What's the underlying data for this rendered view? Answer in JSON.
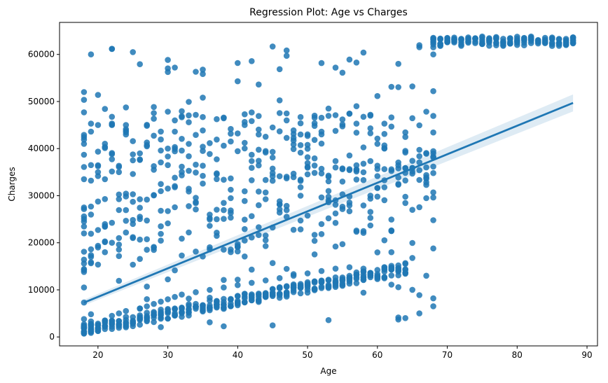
{
  "chart_data": {
    "type": "scatter",
    "title": "Regression Plot: Age vs Charges",
    "xlabel": "Age",
    "ylabel": "Charges",
    "xlim": [
      14.5,
      91.5
    ],
    "ylim": [
      -1900,
      66800
    ],
    "x_ticks": [
      20,
      30,
      40,
      50,
      60,
      70,
      80,
      90
    ],
    "y_ticks": [
      0,
      10000,
      20000,
      30000,
      40000,
      50000,
      60000
    ],
    "grid": false,
    "legend": "none",
    "point_color": "#1f77b4",
    "regression": {
      "x": [
        18,
        88
      ],
      "y": [
        7300,
        49700
      ],
      "ci_half_width_start": 600,
      "ci_half_width_end": 1800
    },
    "bands": {
      "low_band": {
        "age_range": [
          18,
          64
        ],
        "y_at_start": 1500,
        "y_at_end": 14500
      },
      "high_cluster": {
        "age_range": [
          68,
          88
        ],
        "y_range": [
          61800,
          63800
        ]
      },
      "mid_scatter": {
        "age_range": [
          18,
          68
        ],
        "y_range": [
          1500,
          63500
        ]
      }
    },
    "series": [
      {
        "x": [
          18,
          18,
          18,
          18,
          18,
          18,
          18,
          18,
          18,
          18,
          18,
          18,
          18,
          18,
          18,
          18,
          18,
          18,
          19,
          19,
          19,
          19,
          19,
          19,
          20,
          20,
          20,
          20,
          21,
          21,
          21,
          22,
          22,
          22,
          23,
          23,
          24,
          24,
          25,
          25,
          26,
          26,
          27,
          27,
          28,
          28,
          29,
          29,
          30,
          30,
          31,
          31,
          32,
          33,
          34,
          35,
          36,
          37,
          38,
          39,
          40,
          41,
          42,
          43,
          44,
          45,
          46,
          47,
          48,
          49,
          50,
          51,
          52,
          53,
          54,
          55,
          56,
          57,
          58,
          59,
          60,
          61,
          62,
          63,
          64,
          65,
          66,
          67,
          68,
          68,
          68,
          68,
          68,
          68,
          68,
          68,
          69,
          70,
          71,
          72,
          73,
          74,
          75,
          76,
          77,
          78,
          79,
          80,
          81,
          82,
          83,
          84,
          85,
          86,
          87,
          88,
          88
        ],
        "y": [
          1200,
          2100,
          3800,
          7300,
          10500,
          13800,
          15600,
          18100,
          22000,
          24500,
          27500,
          33500,
          36100,
          38700,
          41000,
          47700,
          52000,
          14200,
          1600,
          3300,
          17000,
          26000,
          36500,
          60000,
          2500,
          19000,
          35000,
          45000,
          3500,
          18000,
          33500,
          4500,
          20000,
          45000,
          5000,
          21000,
          43000,
          5500,
          24000,
          60500,
          6000,
          39000,
          6500,
          40500,
          7000,
          35500,
          7500,
          23500,
          8000,
          36500,
          8500,
          46000,
          9000,
          41000,
          9500,
          39500,
          10000,
          25000,
          10500,
          41500,
          11000,
          45000,
          11500,
          43000,
          12000,
          44500,
          12500,
          46000,
          13000,
          30000,
          13500,
          47000,
          14000,
          48500,
          14500,
          33000,
          14800,
          49000,
          14500,
          47000,
          12800,
          40000,
          18000,
          58000,
          4000,
          27000,
          5000,
          36000,
          8200,
          18800,
          30700,
          38300,
          52200,
          60000,
          61500,
          63200,
          62200,
          62600,
          63000,
          62500,
          63300,
          62700,
          63100,
          62800,
          63400,
          62600,
          62300,
          63000,
          63500,
          62400,
          62900,
          62700,
          62200,
          63300,
          62000,
          63600,
          62500
        ]
      }
    ]
  }
}
